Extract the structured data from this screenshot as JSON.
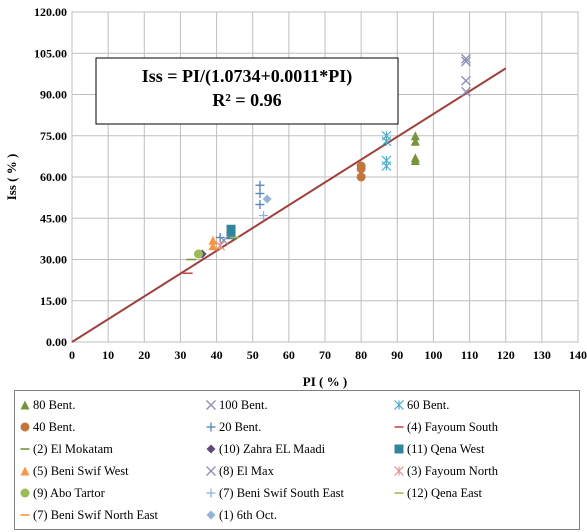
{
  "chart_data": {
    "type": "scatter",
    "title": "",
    "xlabel": "PI ( % )",
    "ylabel": "Iss ( % )",
    "xlim": [
      0,
      140
    ],
    "ylim": [
      0,
      120
    ],
    "x_ticks": [
      0,
      10,
      20,
      30,
      40,
      50,
      60,
      70,
      80,
      90,
      100,
      110,
      120,
      130,
      140
    ],
    "y_ticks": [
      "0.00",
      "15.00",
      "30.00",
      "45.00",
      "60.00",
      "75.00",
      "90.00",
      "105.00",
      "120.00"
    ],
    "grid": true,
    "legend_position": "bottom",
    "annotation": {
      "equation": "Iss = PI/(1.0734+0.0011*PI)",
      "r_squared": "R² = 0.96"
    },
    "fit_line": {
      "x": [
        0,
        120
      ],
      "y": [
        0,
        99.5
      ],
      "color": "#a0403c"
    },
    "series": [
      {
        "name": "80 Bent.",
        "marker": "triangle",
        "color": "#77933c",
        "points": [
          [
            95,
            73
          ],
          [
            95,
            75
          ],
          [
            95,
            66
          ],
          [
            95,
            67
          ]
        ]
      },
      {
        "name": "100 Bent.",
        "marker": "x",
        "color": "#8e8eb4",
        "points": [
          [
            109,
            103
          ],
          [
            109,
            102
          ],
          [
            109,
            95
          ],
          [
            109,
            91
          ]
        ]
      },
      {
        "name": "60 Bent.",
        "marker": "asterisk",
        "color": "#4bacc6",
        "points": [
          [
            87,
            75
          ],
          [
            87,
            73
          ],
          [
            87,
            66
          ],
          [
            87,
            64
          ]
        ]
      },
      {
        "name": "40 Bent.",
        "marker": "circle",
        "color": "#c0763c",
        "points": [
          [
            80,
            64
          ],
          [
            80,
            63
          ],
          [
            80,
            60
          ]
        ]
      },
      {
        "name": "20 Bent.",
        "marker": "plus",
        "color": "#4f81bd",
        "points": [
          [
            52,
            57
          ],
          [
            52,
            54
          ],
          [
            52,
            50
          ],
          [
            41,
            38
          ]
        ]
      },
      {
        "name": "(4) Fayoum South",
        "marker": "dash",
        "color": "#c0504d",
        "points": [
          [
            32,
            25
          ]
        ]
      },
      {
        "name": "(2) El Mokatam",
        "marker": "dash",
        "color": "#77933c",
        "points": [
          [
            33,
            30
          ]
        ]
      },
      {
        "name": "(10) Zahra EL Maadi",
        "marker": "diamond",
        "color": "#604a7b",
        "points": [
          [
            36,
            32
          ]
        ]
      },
      {
        "name": "(11) Qena West",
        "marker": "square",
        "color": "#31859c",
        "points": [
          [
            44,
            41
          ],
          [
            44,
            39
          ]
        ]
      },
      {
        "name": "(5) Beni Swif  West",
        "marker": "triangle",
        "color": "#f79646",
        "points": [
          [
            39,
            37
          ],
          [
            39,
            35
          ]
        ]
      },
      {
        "name": "(8) El Max",
        "marker": "x",
        "color": "#8e8eb4",
        "points": [
          [
            42,
            37
          ]
        ]
      },
      {
        "name": "(3) Fayoum North",
        "marker": "asterisk",
        "color": "#d99694",
        "points": [
          [
            41,
            35
          ]
        ]
      },
      {
        "name": "(9) Abo Tartor",
        "marker": "circle",
        "color": "#9bbb59",
        "points": [
          [
            35,
            32
          ]
        ]
      },
      {
        "name": "(7) Beni Swif  South East",
        "marker": "plus",
        "color": "#8eb4e3",
        "points": [
          [
            53,
            46
          ]
        ]
      },
      {
        "name": "(12) Qena  East",
        "marker": "dash",
        "color": "#9bbb59",
        "points": [
          [
            45,
            38
          ]
        ]
      },
      {
        "name": "(7) Beni Swif North East",
        "marker": "dash",
        "color": "#f79646",
        "points": [
          [
            40,
            34
          ]
        ]
      },
      {
        "name": "(1) 6th Oct.",
        "marker": "diamond",
        "color": "#95b3d7",
        "points": [
          [
            54,
            52
          ]
        ]
      }
    ]
  }
}
